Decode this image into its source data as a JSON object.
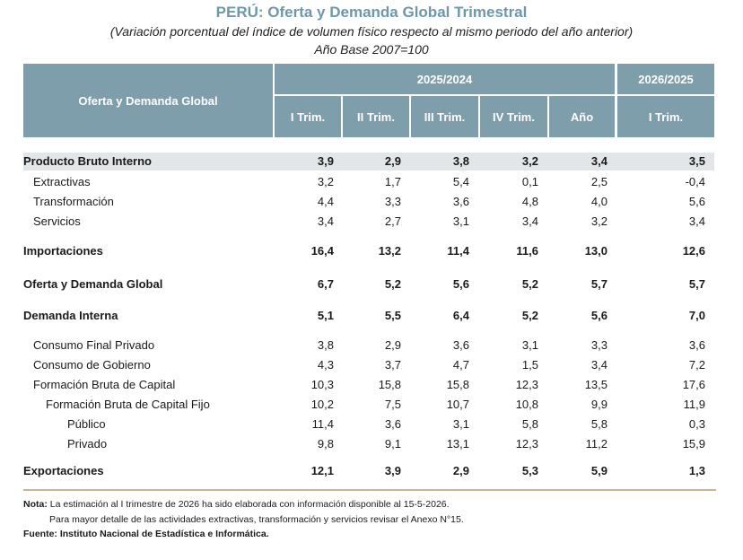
{
  "title": "PERÚ: Oferta y Demanda Global Trimestral",
  "subtitle": "(Variación porcentual del índice de volumen físico respecto al mismo periodo del año anterior)",
  "base": "Año Base 2007=100",
  "header": {
    "main": "Oferta y Demanda Global",
    "group1": "2025/2024",
    "group2": "2026/2025",
    "columns": [
      "I Trim.",
      "II Trim.",
      "III Trim.",
      "IV Trim.",
      "Año",
      "I Trim."
    ]
  },
  "rows": [
    {
      "label": "Producto Bruto Interno",
      "values": [
        "3,9",
        "2,9",
        "3,8",
        "3,2",
        "3,4",
        "3,5"
      ]
    },
    {
      "label": "Extractivas",
      "values": [
        "3,2",
        "1,7",
        "5,4",
        "0,1",
        "2,5",
        "-0,4"
      ]
    },
    {
      "label": "Transformación",
      "values": [
        "4,4",
        "3,3",
        "3,6",
        "4,8",
        "4,0",
        "5,6"
      ]
    },
    {
      "label": "Servicios",
      "values": [
        "3,4",
        "2,7",
        "3,1",
        "3,4",
        "3,2",
        "3,4"
      ]
    },
    {
      "label": "Importaciones",
      "values": [
        "16,4",
        "13,2",
        "11,4",
        "11,6",
        "13,0",
        "12,6"
      ]
    },
    {
      "label": "Oferta y Demanda Global",
      "values": [
        "6,7",
        "5,2",
        "5,6",
        "5,2",
        "5,7",
        "5,7"
      ]
    },
    {
      "label": "Demanda Interna",
      "values": [
        "5,1",
        "5,5",
        "6,4",
        "5,2",
        "5,6",
        "7,0"
      ]
    },
    {
      "label": "Consumo Final Privado",
      "values": [
        "3,8",
        "2,9",
        "3,6",
        "3,1",
        "3,3",
        "3,6"
      ]
    },
    {
      "label": "Consumo de Gobierno",
      "values": [
        "4,3",
        "3,7",
        "4,7",
        "1,5",
        "3,4",
        "7,2"
      ]
    },
    {
      "label": "Formación Bruta de Capital",
      "values": [
        "10,3",
        "15,8",
        "15,8",
        "12,3",
        "13,5",
        "17,6"
      ]
    },
    {
      "label": "Formación Bruta de Capital Fijo",
      "values": [
        "10,2",
        "7,5",
        "10,7",
        "10,8",
        "9,9",
        "11,9"
      ]
    },
    {
      "label": "Público",
      "values": [
        "11,4",
        "3,6",
        "3,1",
        "5,8",
        "5,8",
        "0,3"
      ]
    },
    {
      "label": "Privado",
      "values": [
        "9,8",
        "9,1",
        "13,1",
        "12,3",
        "11,2",
        "15,9"
      ]
    },
    {
      "label": "Exportaciones",
      "values": [
        "12,1",
        "3,9",
        "2,9",
        "5,3",
        "5,9",
        "1,3"
      ]
    }
  ],
  "notes": {
    "nota_label": "Nota:",
    "nota_text": "La estimación al I trimestre de 2026 ha sido elaborada con información disponible al 15-5-2026.",
    "nota_text2": "Para mayor detalle de las actividades extractivas, transformación y servicios revisar el Anexo N°15.",
    "fuente": "Fuente: Instituto Nacional de Estadística e Informática."
  }
}
